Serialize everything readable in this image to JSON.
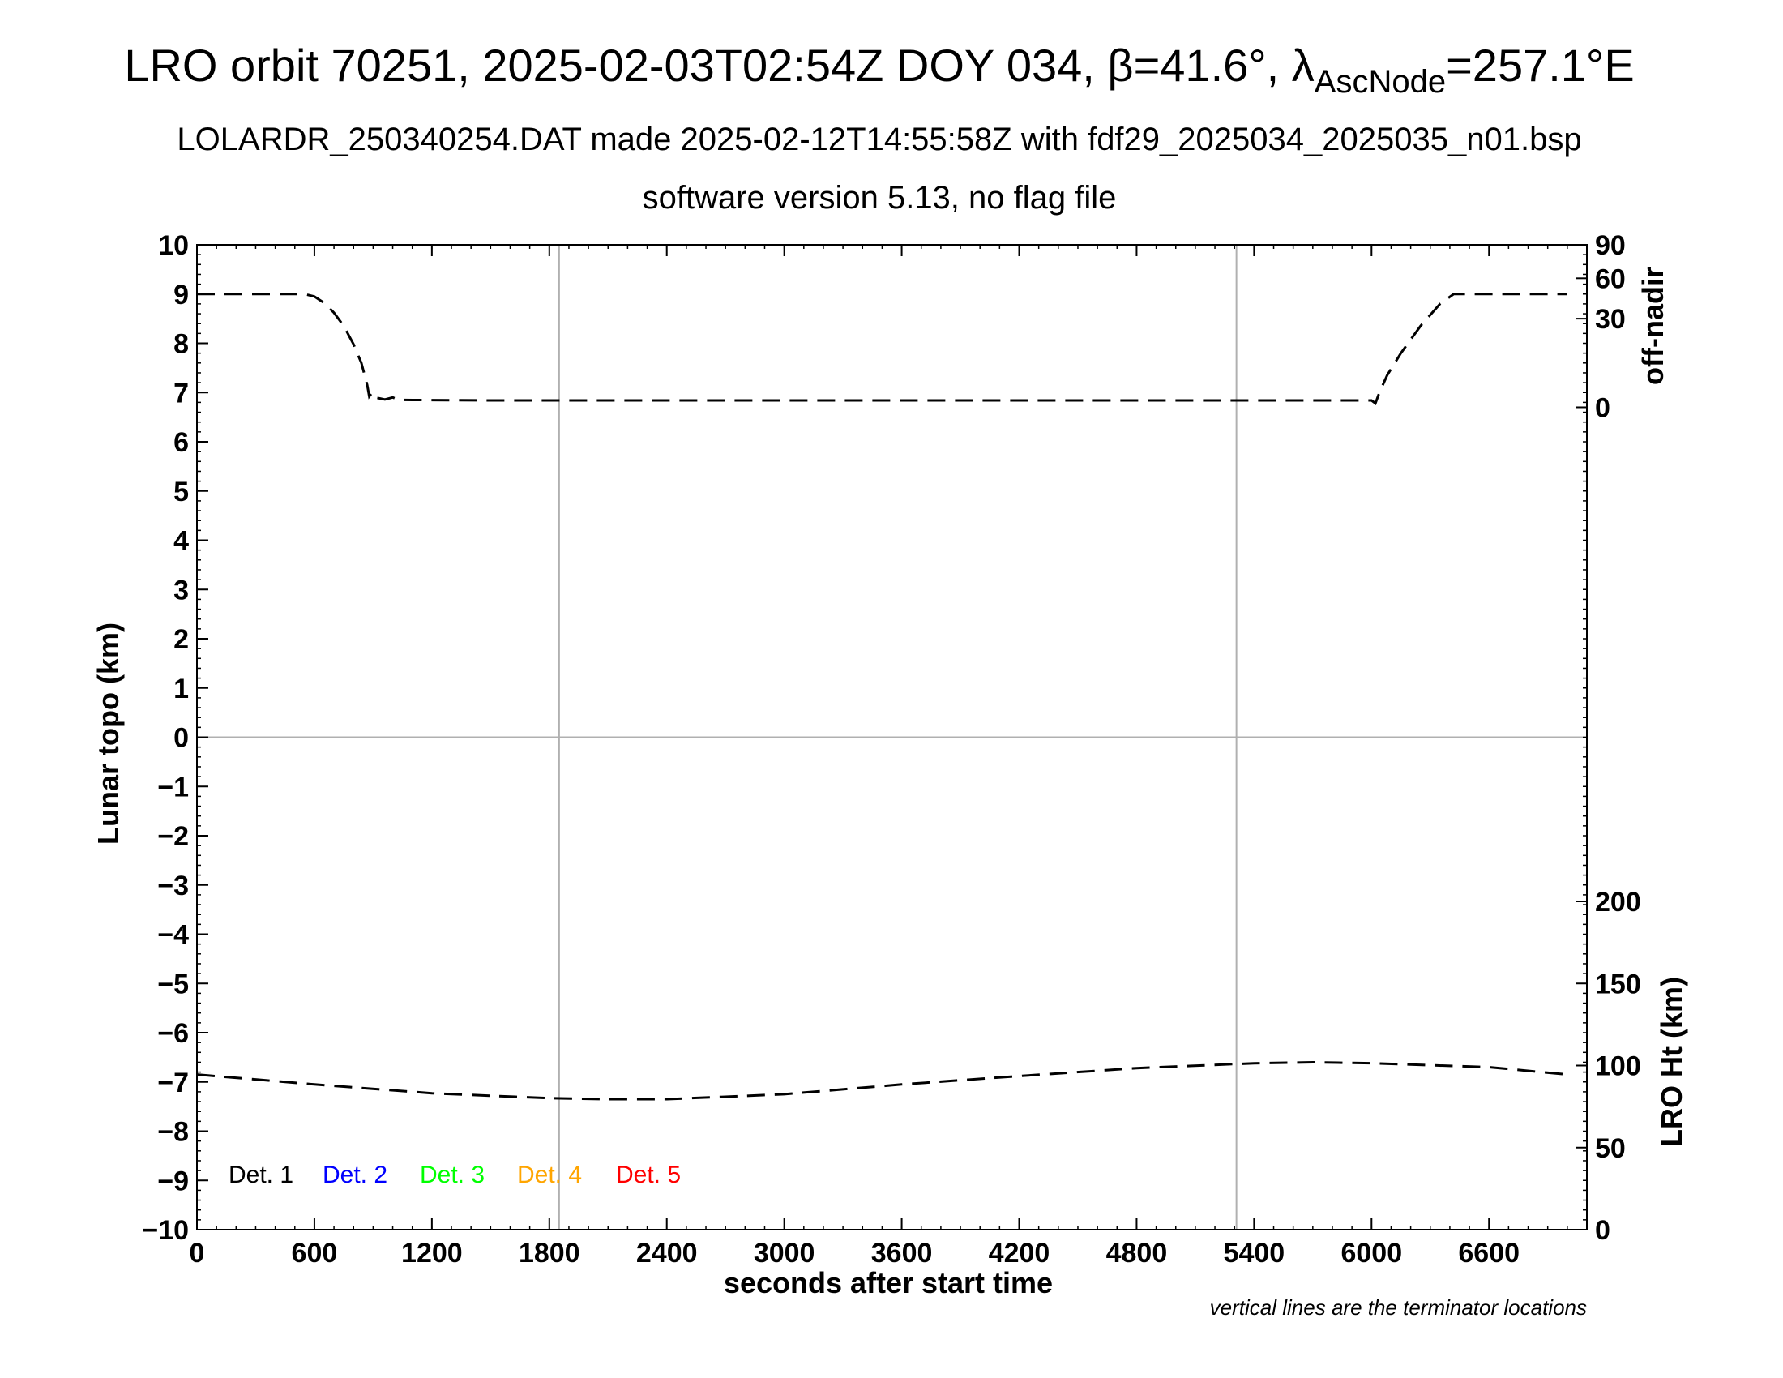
{
  "header": {
    "title_prefix": "LRO orbit 70251, 2025-02-03T02:54Z DOY 034, β=41.6°, λ",
    "title_sub": "AscNode",
    "title_suffix": "=257.1°E",
    "subtitle1": "LOLARDR_250340254.DAT made 2025-02-12T14:55:58Z with fdf29_2025034_2025035_n01.bsp",
    "subtitle2": "software version 5.13, no flag file"
  },
  "footnote": "vertical lines are the terminator locations",
  "colors": {
    "grid": "#b0b0b0",
    "det1": "#000000",
    "det2": "#0000ff",
    "det3": "#00ff00",
    "det4": "#ffa500",
    "det5": "#ff0000"
  },
  "chart_data": {
    "type": "line",
    "xlabel": "seconds after start time",
    "ylabel": "Lunar topo (km)",
    "y2label_top": "off-nadir",
    "y2label_bottom": "LRO Ht (km)",
    "xlim": [
      0,
      7100
    ],
    "ylim": [
      -10,
      10
    ],
    "x_ticks": [
      "0",
      "600",
      "1200",
      "1800",
      "2400",
      "3000",
      "3600",
      "4200",
      "4800",
      "5400",
      "6000",
      "6600"
    ],
    "y_ticks": [
      "−10",
      "−9",
      "−8",
      "−7",
      "−6",
      "−5",
      "−4",
      "−3",
      "−2",
      "−1",
      "0",
      "1",
      "2",
      "3",
      "4",
      "5",
      "6",
      "7",
      "8",
      "9",
      "10"
    ],
    "off_nadir_ticks": [
      "0",
      "30",
      "60",
      "90"
    ],
    "lro_ht_ticks": [
      "0",
      "50",
      "100",
      "150",
      "200"
    ],
    "terminator_lines_x": [
      1850,
      5310
    ],
    "legend": [
      "Det. 1",
      "Det. 2",
      "Det. 3",
      "Det. 4",
      "Det. 5"
    ],
    "grid": "terminator lines and y=0 only",
    "series": [
      {
        "name": "off-nadir",
        "axis": "right-top",
        "dash": "dashed",
        "points": [
          [
            0,
            9.0
          ],
          [
            550,
            9.0
          ],
          [
            600,
            8.95
          ],
          [
            650,
            8.82
          ],
          [
            700,
            8.62
          ],
          [
            750,
            8.35
          ],
          [
            800,
            7.98
          ],
          [
            840,
            7.6
          ],
          [
            870,
            7.15
          ],
          [
            880,
            6.92
          ],
          [
            895,
            7.0
          ],
          [
            910,
            6.9
          ],
          [
            960,
            6.86
          ],
          [
            1000,
            6.9
          ],
          [
            1030,
            6.85
          ],
          [
            1500,
            6.84
          ],
          [
            2500,
            6.84
          ],
          [
            3500,
            6.84
          ],
          [
            4500,
            6.84
          ],
          [
            5500,
            6.84
          ],
          [
            6000,
            6.84
          ],
          [
            6020,
            6.78
          ],
          [
            6040,
            7.0
          ],
          [
            6080,
            7.35
          ],
          [
            6150,
            7.8
          ],
          [
            6250,
            8.35
          ],
          [
            6350,
            8.8
          ],
          [
            6420,
            9.0
          ],
          [
            7000,
            9.0
          ]
        ]
      },
      {
        "name": "LRO Ht (km)",
        "axis": "right-bottom",
        "dash": "dashed",
        "points": [
          [
            0,
            -6.85
          ],
          [
            600,
            -7.05
          ],
          [
            1200,
            -7.23
          ],
          [
            1800,
            -7.33
          ],
          [
            2100,
            -7.35
          ],
          [
            2400,
            -7.35
          ],
          [
            3000,
            -7.25
          ],
          [
            3600,
            -7.05
          ],
          [
            4200,
            -6.88
          ],
          [
            4800,
            -6.72
          ],
          [
            5400,
            -6.62
          ],
          [
            5700,
            -6.6
          ],
          [
            6000,
            -6.62
          ],
          [
            6600,
            -6.7
          ],
          [
            7000,
            -6.85
          ]
        ]
      }
    ]
  }
}
